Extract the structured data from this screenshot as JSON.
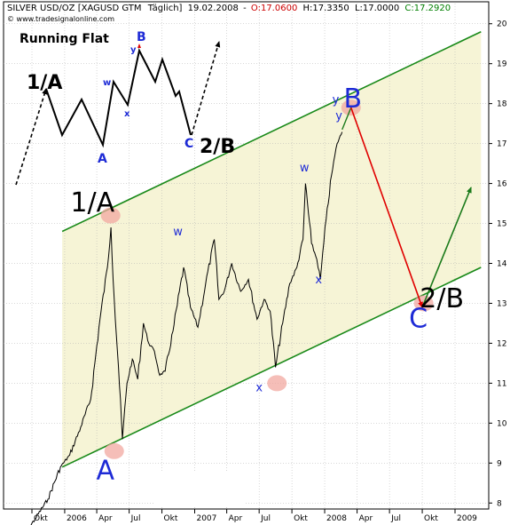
{
  "header": {
    "symbol": "SILVER USD/OZ [XAGUSD GTM",
    "period": "Täglich]",
    "date": "19.02.2008",
    "open": "O:17.0600",
    "high": "H:17.3350",
    "low": "L:17.0000",
    "close": "C:17.2920",
    "watermark": "© www.tradesignalonline.com"
  },
  "colors": {
    "open": "#cc0000",
    "close": "#008000",
    "channel_line": "#1a8a1a",
    "channel_fill": "#f6f4d6",
    "wave_label": "#1e2bd6",
    "arrow_down": "#e00000",
    "arrow_up": "#1a7a1a",
    "marker": "#f2a8a0"
  },
  "inset": {
    "title": "Running Flat",
    "labels": [
      "1/A",
      "A",
      "B",
      "C",
      "2/B",
      "w",
      "x",
      "y"
    ]
  },
  "chart_data": {
    "type": "line",
    "title": "SILVER USD/OZ",
    "y_ticks": [
      8,
      9,
      10,
      11,
      12,
      13,
      14,
      15,
      16,
      17,
      18,
      19,
      20
    ],
    "ylim": [
      7.85,
      20.55
    ],
    "x_ticks": [
      {
        "label": "Okt",
        "date": "2005-10"
      },
      {
        "label": "2006",
        "date": "2006-01"
      },
      {
        "label": "Apr",
        "date": "2006-04"
      },
      {
        "label": "Jul",
        "date": "2006-07"
      },
      {
        "label": "Okt",
        "date": "2006-10"
      },
      {
        "label": "2007",
        "date": "2007-01"
      },
      {
        "label": "Apr",
        "date": "2007-04"
      },
      {
        "label": "Jul",
        "date": "2007-07"
      },
      {
        "label": "Okt",
        "date": "2007-10"
      },
      {
        "label": "2008",
        "date": "2008-01"
      },
      {
        "label": "Apr",
        "date": "2008-04"
      },
      {
        "label": "Jul",
        "date": "2008-07"
      },
      {
        "label": "Okt",
        "date": "2008-10"
      },
      {
        "label": "2009",
        "date": "2009-01"
      }
    ],
    "price_series": [
      [
        "2005-09-01",
        7.1
      ],
      [
        "2005-10-10",
        7.6
      ],
      [
        "2005-11-15",
        8.1
      ],
      [
        "2005-12-20",
        8.9
      ],
      [
        "2006-01-15",
        9.2
      ],
      [
        "2006-02-15",
        9.9
      ],
      [
        "2006-03-15",
        10.6
      ],
      [
        "2006-04-10",
        12.6
      ],
      [
        "2006-05-01",
        13.9
      ],
      [
        "2006-05-11",
        14.9
      ],
      [
        "2006-05-20",
        13.1
      ],
      [
        "2006-06-01",
        11.4
      ],
      [
        "2006-06-12",
        9.6
      ],
      [
        "2006-06-25",
        11.0
      ],
      [
        "2006-07-10",
        11.6
      ],
      [
        "2006-07-25",
        11.1
      ],
      [
        "2006-08-10",
        12.5
      ],
      [
        "2006-08-25",
        12.0
      ],
      [
        "2006-09-10",
        11.8
      ],
      [
        "2006-09-25",
        11.2
      ],
      [
        "2006-10-10",
        11.3
      ],
      [
        "2006-11-01",
        12.3
      ],
      [
        "2006-12-01",
        13.9
      ],
      [
        "2006-12-20",
        12.9
      ],
      [
        "2007-01-10",
        12.4
      ],
      [
        "2007-02-01",
        13.5
      ],
      [
        "2007-02-25",
        14.6
      ],
      [
        "2007-03-10",
        13.1
      ],
      [
        "2007-03-25",
        13.3
      ],
      [
        "2007-04-15",
        14.0
      ],
      [
        "2007-05-10",
        13.3
      ],
      [
        "2007-06-01",
        13.6
      ],
      [
        "2007-06-25",
        12.6
      ],
      [
        "2007-07-15",
        13.1
      ],
      [
        "2007-08-01",
        12.8
      ],
      [
        "2007-08-16",
        11.4
      ],
      [
        "2007-09-05",
        12.5
      ],
      [
        "2007-09-25",
        13.5
      ],
      [
        "2007-10-15",
        13.9
      ],
      [
        "2007-11-01",
        14.6
      ],
      [
        "2007-11-08",
        16.0
      ],
      [
        "2007-11-25",
        14.5
      ],
      [
        "2007-12-10",
        14.1
      ],
      [
        "2007-12-20",
        13.6
      ],
      [
        "2008-01-05",
        15.1
      ],
      [
        "2008-01-20",
        16.2
      ],
      [
        "2008-02-05",
        17.0
      ],
      [
        "2008-02-19",
        17.29
      ]
    ],
    "channel": {
      "upper": [
        [
          "2005-12-25",
          14.8
        ],
        [
          "2009-03-15",
          19.8
        ]
      ],
      "lower": [
        [
          "2005-12-25",
          8.9
        ],
        [
          "2009-03-15",
          13.9
        ]
      ]
    },
    "projection": [
      [
        "2008-02-19",
        17.35
      ],
      [
        "2008-03-15",
        17.9
      ],
      [
        "2008-10-01",
        12.9
      ],
      [
        "2009-02-15",
        15.9
      ]
    ],
    "markers": [
      {
        "date": "2006-05-10",
        "value": 15.2
      },
      {
        "date": "2006-05-20",
        "value": 9.3
      },
      {
        "date": "2007-08-20",
        "value": 11.0
      },
      {
        "date": "2008-03-15",
        "value": 17.9
      },
      {
        "date": "2008-10-05",
        "value": 13.0
      }
    ],
    "annotations": [
      {
        "text": "1/A",
        "date": "2006-03-20",
        "value": 15.3
      },
      {
        "text": "A",
        "date": "2006-04-25",
        "value": 8.6
      },
      {
        "text": "w",
        "date": "2006-11-15",
        "value": 14.7
      },
      {
        "text": "x",
        "date": "2007-07-01",
        "value": 10.8
      },
      {
        "text": "w",
        "date": "2007-11-05",
        "value": 16.3
      },
      {
        "text": "x",
        "date": "2007-12-15",
        "value": 13.5
      },
      {
        "text": "y",
        "date": "2008-02-01",
        "value": 18.0
      },
      {
        "text": "y",
        "date": "2008-02-10",
        "value": 17.6
      },
      {
        "text": "B",
        "date": "2008-03-20",
        "value": 17.9
      },
      {
        "text": "C",
        "date": "2008-09-20",
        "value": 12.4
      },
      {
        "text": "2/B",
        "date": "2008-11-25",
        "value": 12.9
      }
    ]
  }
}
